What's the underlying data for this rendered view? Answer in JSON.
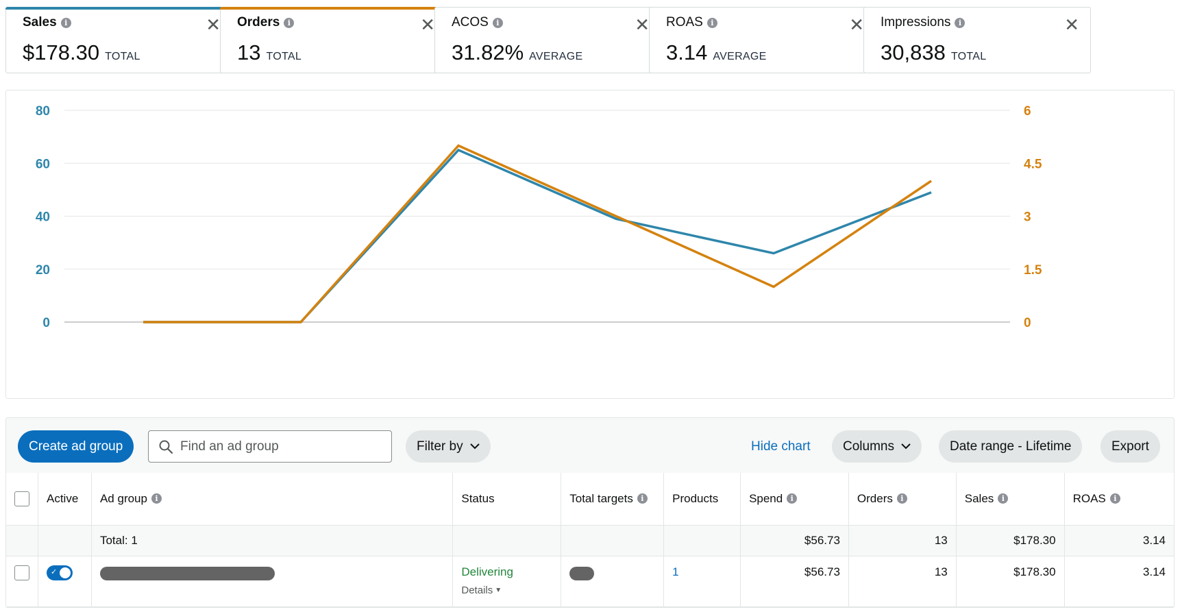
{
  "metrics": [
    {
      "title": "Sales",
      "value": "$178.30",
      "unit": "TOTAL",
      "color": "#2e86ab",
      "selected": true
    },
    {
      "title": "Orders",
      "value": "13",
      "unit": "TOTAL",
      "color": "#d4820f",
      "selected": true
    },
    {
      "title": "ACOS",
      "value": "31.82%",
      "unit": "AVERAGE",
      "color": "",
      "selected": false
    },
    {
      "title": "ROAS",
      "value": "3.14",
      "unit": "AVERAGE",
      "color": "",
      "selected": false
    },
    {
      "title": "Impressions",
      "value": "30,838",
      "unit": "TOTAL",
      "color": "",
      "selected": false
    }
  ],
  "chart_data": {
    "type": "line",
    "x": [
      1,
      2,
      3,
      4,
      5,
      6
    ],
    "ylim_left": [
      0,
      80
    ],
    "ylim_right": [
      0,
      6
    ],
    "yticks_left": [
      "0",
      "20",
      "40",
      "60",
      "80"
    ],
    "yticks_right": [
      "0",
      "1.5",
      "3",
      "4.5",
      "6"
    ],
    "grid": true,
    "series": [
      {
        "name": "Sales",
        "axis": "left",
        "color": "#2e86ab",
        "values": [
          0,
          0,
          65,
          39,
          26,
          49
        ]
      },
      {
        "name": "Orders",
        "axis": "right",
        "color": "#d4820f",
        "values": [
          0,
          0,
          5,
          3,
          1,
          4
        ]
      }
    ]
  },
  "toolbar": {
    "create_label": "Create ad group",
    "search_placeholder": "Find an ad group",
    "filter_label": "Filter by",
    "hide_chart_label": "Hide chart",
    "columns_label": "Columns",
    "date_range_label": "Date range - Lifetime",
    "export_label": "Export"
  },
  "table": {
    "headers": {
      "active": "Active",
      "ad_group": "Ad group",
      "status": "Status",
      "total_targets": "Total targets",
      "products": "Products",
      "spend": "Spend",
      "orders": "Orders",
      "sales": "Sales",
      "roas": "ROAS"
    },
    "total": {
      "label": "Total: 1",
      "spend": "$56.73",
      "orders": "13",
      "sales": "$178.30",
      "roas": "3.14"
    },
    "row": {
      "active": true,
      "status": "Delivering",
      "details": "Details",
      "products": "1",
      "spend": "$56.73",
      "orders": "13",
      "sales": "$178.30",
      "roas": "3.14"
    }
  }
}
